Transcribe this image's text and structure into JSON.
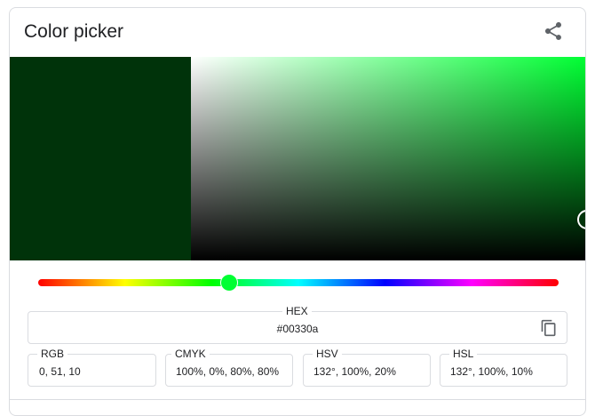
{
  "header": {
    "title": "Color picker",
    "share_icon": "share-icon"
  },
  "color": {
    "current": "#00330a",
    "hue_base": "#00ff33",
    "hue_degrees": 132,
    "saturation_value_handle": {
      "s": 1.0,
      "v": 0.2
    }
  },
  "hex": {
    "label": "HEX",
    "value": "#00330a",
    "copy_icon": "copy-icon"
  },
  "fields": [
    {
      "label": "RGB",
      "value": "0, 51, 10"
    },
    {
      "label": "CMYK",
      "value": "100%, 0%, 80%, 80%"
    },
    {
      "label": "HSV",
      "value": "132°, 100%, 20%"
    },
    {
      "label": "HSL",
      "value": "132°, 100%, 10%"
    }
  ]
}
